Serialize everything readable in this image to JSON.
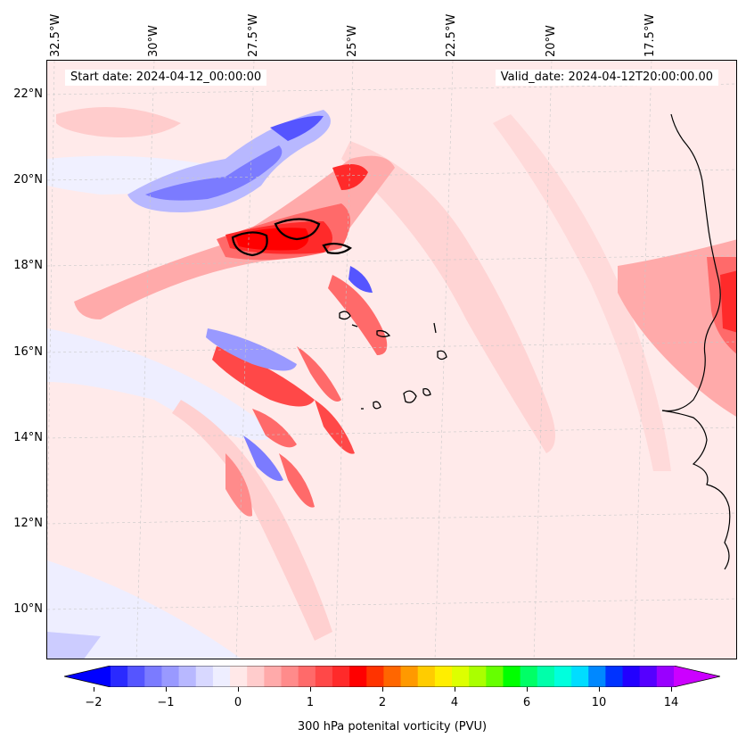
{
  "map": {
    "start_date": "Start date: 2024-04-12_00:00:00",
    "valid_date": "Valid_date: 2024-04-12T20:00:00.00",
    "lon_labels": [
      "32.5°W",
      "30°W",
      "27.5°W",
      "25°W",
      "22.5°W",
      "20°W",
      "17.5°W"
    ],
    "lat_labels": [
      "22°N",
      "20°N",
      "18°N",
      "16°N",
      "14°N",
      "12°N",
      "10°N"
    ],
    "extent": {
      "lon": [
        -32.6,
        -15.2
      ],
      "lat": [
        8.9,
        22.8
      ]
    },
    "field": "300 hPa potential vorticity",
    "features": [
      "Cape Verde islands",
      "West African coastline"
    ]
  },
  "colorbar": {
    "label": "300 hPa potenital vorticity (PVU)",
    "ticks": [
      "−2",
      "−1",
      "0",
      "1",
      "2",
      "4",
      "6",
      "10",
      "14"
    ],
    "colors": [
      "#0000ff",
      "#2a2aff",
      "#5555ff",
      "#7b7bff",
      "#9999ff",
      "#b8b8ff",
      "#d8d8ff",
      "#eeeeff",
      "#ffe8e8",
      "#ffcccc",
      "#ffaaaa",
      "#ff8b8b",
      "#ff6a6a",
      "#ff4848",
      "#ff2a2a",
      "#ff0000",
      "#ff3300",
      "#ff6600",
      "#ff9900",
      "#ffcc00",
      "#ffee00",
      "#ddff00",
      "#aaff00",
      "#66ff00",
      "#00ff00",
      "#00ff66",
      "#00ffaa",
      "#00ffdd",
      "#00ddff",
      "#0088ff",
      "#0033ff",
      "#2200ff",
      "#5500ff",
      "#9900ff",
      "#cc00ff"
    ]
  }
}
